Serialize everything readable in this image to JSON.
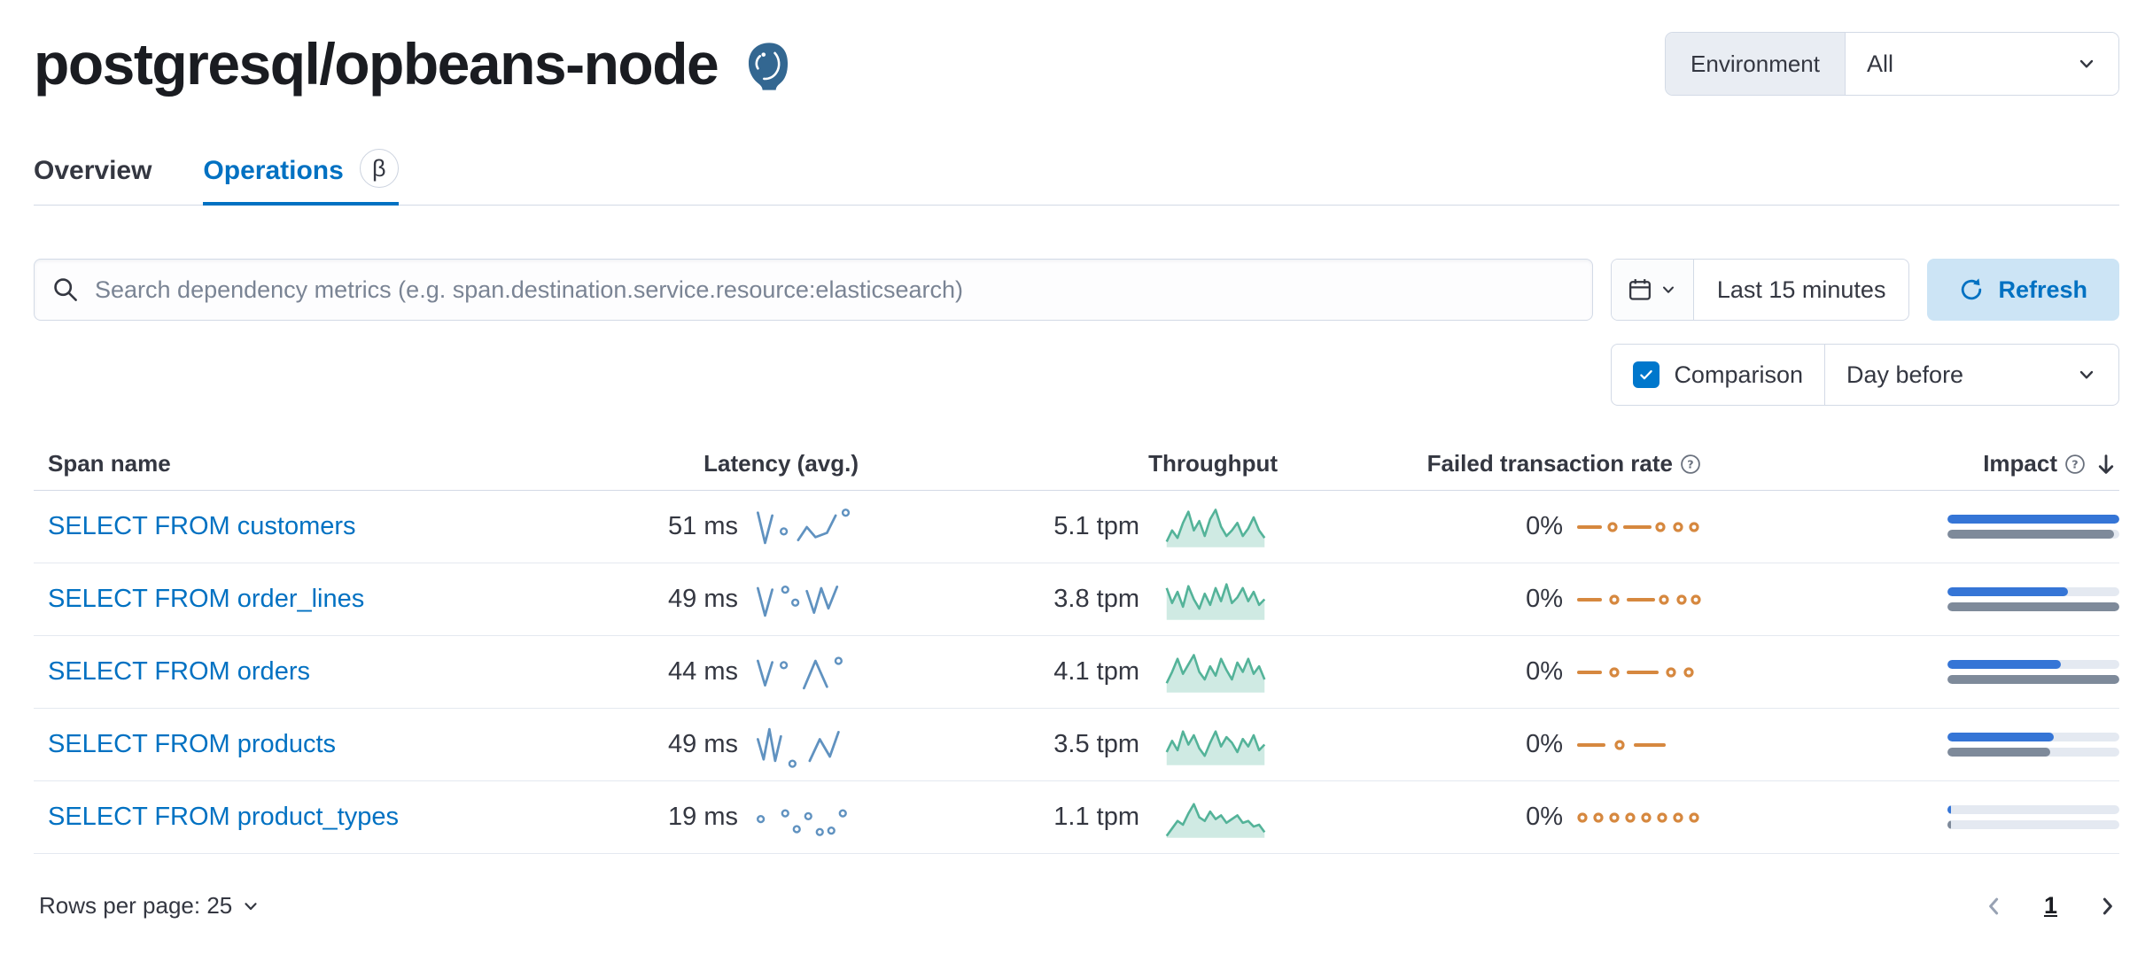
{
  "header": {
    "title": "postgresql/opbeans-node",
    "environment_label": "Environment",
    "environment_value": "All"
  },
  "tabs": [
    {
      "label": "Overview",
      "active": false
    },
    {
      "label": "Operations",
      "active": true,
      "beta": "β"
    }
  ],
  "toolbar": {
    "search_placeholder": "Search dependency metrics (e.g. span.destination.service.resource:elasticsearch)",
    "time_range": "Last 15 minutes",
    "refresh_label": "Refresh",
    "comparison_label": "Comparison",
    "comparison_checked": true,
    "comparison_value": "Day before"
  },
  "table": {
    "columns": [
      "Span name",
      "Latency (avg.)",
      "Throughput",
      "Failed transaction rate",
      "Impact"
    ],
    "rows": [
      {
        "span_name": "SELECT FROM customers",
        "latency": "51 ms",
        "throughput": "5.1 tpm",
        "failed_rate": "0%",
        "latency_spark": {
          "segments": [
            [
              [
                2,
                6
              ],
              [
                7,
                27
              ],
              [
                12,
                8
              ]
            ],
            [
              [
                30,
                25
              ],
              [
                36,
                16
              ],
              [
                42,
                23
              ],
              [
                50,
                20
              ],
              [
                56,
                8
              ]
            ]
          ],
          "dots": [
            [
              20,
              19
            ],
            [
              63,
              6
            ]
          ]
        },
        "throughput_spark": [
          0.15,
          0.45,
          0.25,
          0.65,
          0.95,
          0.45,
          0.7,
          0.3,
          0.75,
          1.0,
          0.55,
          0.3,
          0.45,
          0.65,
          0.3,
          0.5,
          0.8,
          0.45,
          0.25
        ],
        "failed_spark": {
          "dashes": [
            [
              1,
              13
            ],
            [
              27,
              41
            ]
          ],
          "circles": [
            20,
            47,
            57,
            66
          ]
        },
        "impact": {
          "current": 100,
          "previous": 97
        }
      },
      {
        "span_name": "SELECT FROM order_lines",
        "latency": "49 ms",
        "throughput": "3.8 tpm",
        "failed_rate": "0%",
        "latency_spark": {
          "segments": [
            [
              [
                2,
                8
              ],
              [
                7,
                27
              ],
              [
                12,
                9
              ]
            ],
            [
              [
                36,
                10
              ],
              [
                41,
                25
              ],
              [
                46,
                8
              ],
              [
                51,
                22
              ],
              [
                57,
                7
              ]
            ]
          ],
          "dots": [
            [
              21,
              9
            ],
            [
              28,
              18
            ]
          ]
        },
        "throughput_spark": [
          0.85,
          0.45,
          0.75,
          0.35,
          0.9,
          0.55,
          0.3,
          0.7,
          0.4,
          0.85,
          0.5,
          0.95,
          0.45,
          0.6,
          0.85,
          0.5,
          0.75,
          0.4,
          0.55
        ],
        "failed_spark": {
          "dashes": [
            [
              1,
              13
            ],
            [
              29,
              43
            ]
          ],
          "circles": [
            21,
            49,
            59,
            67
          ]
        },
        "impact": {
          "current": 70,
          "previous": 100
        }
      },
      {
        "span_name": "SELECT FROM orders",
        "latency": "44 ms",
        "throughput": "4.1 tpm",
        "failed_rate": "0%",
        "latency_spark": {
          "segments": [
            [
              [
                2,
                8
              ],
              [
                7,
                25
              ],
              [
                12,
                9
              ]
            ],
            [
              [
                34,
                27
              ],
              [
                42,
                8
              ],
              [
                50,
                26
              ]
            ]
          ],
          "dots": [
            [
              20,
              11
            ],
            [
              58,
              8
            ]
          ]
        },
        "throughput_spark": [
          0.25,
          0.55,
          0.9,
          0.5,
          0.75,
          1.0,
          0.55,
          0.35,
          0.7,
          0.45,
          0.9,
          0.6,
          0.35,
          0.8,
          0.55,
          0.9,
          0.5,
          0.7,
          0.35
        ],
        "failed_spark": {
          "dashes": [
            [
              1,
              13
            ],
            [
              29,
              45
            ]
          ],
          "circles": [
            21,
            53,
            63
          ]
        },
        "impact": {
          "current": 66,
          "previous": 100
        }
      },
      {
        "span_name": "SELECT FROM products",
        "latency": "49 ms",
        "throughput": "3.5 tpm",
        "failed_rate": "0%",
        "latency_spark": {
          "segments": [
            [
              [
                2,
                12
              ],
              [
                6,
                26
              ],
              [
                10,
                5
              ],
              [
                14,
                27
              ],
              [
                18,
                10
              ]
            ],
            [
              [
                38,
                27
              ],
              [
                45,
                12
              ],
              [
                52,
                24
              ],
              [
                58,
                7
              ]
            ]
          ],
          "dots": [
            [
              26,
              29
            ]
          ]
        },
        "throughput_spark": [
          0.35,
          0.65,
          0.4,
          0.9,
          0.55,
          0.8,
          0.45,
          0.25,
          0.6,
          0.9,
          0.5,
          0.75,
          0.6,
          0.35,
          0.7,
          0.5,
          0.8,
          0.4,
          0.55
        ],
        "failed_spark": {
          "dashes": [
            [
              1,
              15
            ],
            [
              33,
              49
            ]
          ],
          "circles": [
            24
          ]
        },
        "impact": {
          "current": 62,
          "previous": 60
        }
      },
      {
        "span_name": "SELECT FROM product_types",
        "latency": "19 ms",
        "throughput": "1.1 tpm",
        "failed_rate": "0%",
        "latency_spark": {
          "segments": [],
          "dots": [
            [
              4,
              17
            ],
            [
              21,
              13
            ],
            [
              29,
              24
            ],
            [
              37,
              15
            ],
            [
              45,
              26
            ],
            [
              53,
              25
            ],
            [
              61,
              13
            ]
          ]
        },
        "throughput_spark": [
          0.05,
          0.25,
          0.45,
          0.35,
          0.65,
          0.9,
          0.55,
          0.45,
          0.7,
          0.5,
          0.6,
          0.4,
          0.5,
          0.6,
          0.4,
          0.45,
          0.3,
          0.35,
          0.15
        ],
        "failed_spark": {
          "dashes": [],
          "circles": [
            3,
            12,
            21,
            30,
            39,
            48,
            57,
            66
          ]
        },
        "impact": {
          "current": 2,
          "previous": 2
        }
      }
    ]
  },
  "footer": {
    "rows_per_page": "Rows per page: 25",
    "page": "1"
  },
  "colors": {
    "primary": "#0071c2",
    "latency_spark": "#6092c0",
    "throughput_spark": "#54b399",
    "throughput_fill": "rgba(84,179,153,0.28)",
    "failed_spark": "#d6883f",
    "impact_current": "#3575d6",
    "impact_previous": "#7e8a9a"
  }
}
